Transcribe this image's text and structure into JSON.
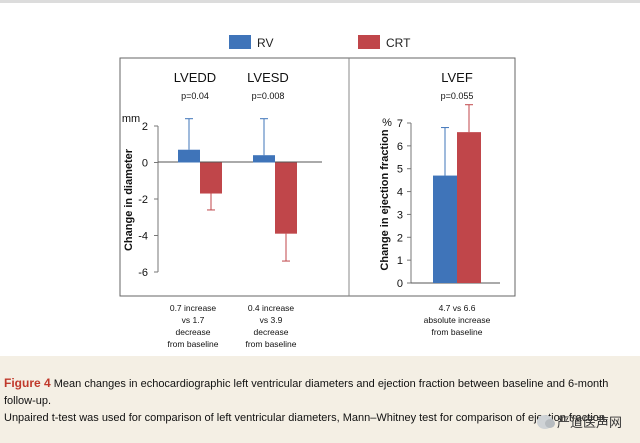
{
  "legend": {
    "items": [
      {
        "label": "RV",
        "color": "#3f74b9"
      },
      {
        "label": "CRT",
        "color": "#c0464a"
      }
    ]
  },
  "chart_data": [
    {
      "type": "bar",
      "ylabel": "Change in diameter",
      "yunit": "mm",
      "ylim": [
        -6,
        2
      ],
      "yticks": [
        2,
        0,
        -2,
        -4,
        -6
      ],
      "categories": [
        "LVEDD",
        "LVESD"
      ],
      "pvalues": [
        "p=0.04",
        "p=0.008"
      ],
      "series": [
        {
          "name": "RV",
          "values": [
            0.7,
            0.4
          ],
          "error_upper": [
            2.4,
            2.4
          ]
        },
        {
          "name": "CRT",
          "values": [
            -1.7,
            -3.9
          ],
          "error_lower": [
            -2.6,
            -5.4
          ]
        }
      ],
      "annotations": [
        [
          "0.7 increase",
          "vs 1.7",
          "decrease",
          "from baseline"
        ],
        [
          "0.4 increase",
          "vs 3.9",
          "decrease",
          "from baseline"
        ]
      ],
      "grid": false
    },
    {
      "type": "bar",
      "ylabel": "Change in ejection fraction",
      "yunit": "%",
      "ylim": [
        0,
        7
      ],
      "yticks": [
        7,
        6,
        5,
        4,
        3,
        2,
        1,
        0
      ],
      "categories": [
        "LVEF"
      ],
      "pvalues": [
        "p=0.055"
      ],
      "series": [
        {
          "name": "RV",
          "values": [
            4.7
          ],
          "error_upper": [
            6.8
          ]
        },
        {
          "name": "CRT",
          "values": [
            6.6
          ],
          "error_upper": [
            7.8
          ]
        }
      ],
      "annotations": [
        [
          "4.7 vs 6.6",
          "absolute increase",
          "from baseline"
        ]
      ],
      "grid": false
    }
  ],
  "caption": {
    "figure_label": "Figure 4",
    "text_line1": " Mean changes in echocardiographic left ventricular diameters and ejection fraction between baseline and 6-month follow-up.",
    "text_line2": "Unpaired t-test was used for comparison of left ventricular diameters, Mann–Whitney test for comparison of ejection fraction."
  },
  "watermark": {
    "text": "严道医声网"
  }
}
